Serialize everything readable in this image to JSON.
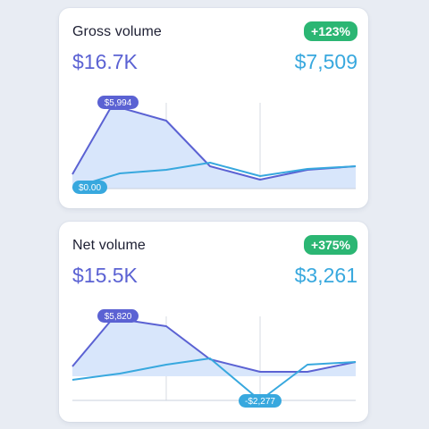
{
  "cards": [
    {
      "title": "Gross volume",
      "badge": "+123%",
      "primary_value": "$16.7K",
      "secondary_value": "$7,509",
      "peak_label": "$5,994",
      "low_label": "$0.00"
    },
    {
      "title": "Net volume",
      "badge": "+375%",
      "primary_value": "$15.5K",
      "secondary_value": "$3,261",
      "peak_label": "$5,820",
      "low_label": "-$2,277"
    }
  ],
  "colors": {
    "primary_line": "#5b62d3",
    "secondary_line": "#38a8de",
    "fill": "#d8e6fb",
    "badge": "#2bb673"
  }
}
